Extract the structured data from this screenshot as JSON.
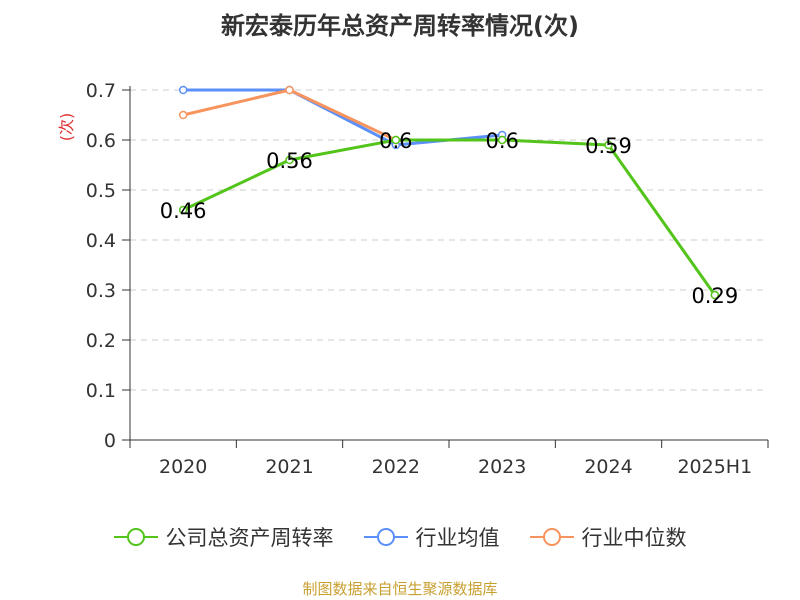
{
  "title": "新宏泰历年总资产周转率情况(次)",
  "footer": "制图数据来自恒生聚源数据库",
  "colors": {
    "series_1": "#52c41a",
    "series_2": "#5b8ff9",
    "series_3": "#f7945e",
    "grid": "#cccccc",
    "axis": "#333333",
    "ylabel": "#e03030",
    "footer": "#c8a030"
  },
  "chart_data": {
    "type": "line",
    "title": "新宏泰历年总资产周转率情况(次)",
    "ylabel": "(次)",
    "xlabel": "",
    "categories": [
      "2020",
      "2021",
      "2022",
      "2023",
      "2024",
      "2025H1"
    ],
    "ylim": [
      0,
      0.7
    ],
    "yticks": [
      "0",
      "0.1",
      "0.2",
      "0.3",
      "0.4",
      "0.5",
      "0.6",
      "0.7"
    ],
    "grid": "horizontal dashed",
    "legend_position": "bottom",
    "series": [
      {
        "name": "公司总资产周转率",
        "values": [
          0.46,
          0.56,
          0.6,
          0.6,
          0.59,
          0.29
        ],
        "labels": [
          "0.46",
          "0.56",
          "0.6",
          "0.6",
          "0.59",
          "0.29"
        ],
        "color": "#52c41a"
      },
      {
        "name": "行业均值",
        "values": [
          0.7,
          0.7,
          0.59,
          0.61,
          null,
          null
        ],
        "color": "#5b8ff9"
      },
      {
        "name": "行业中位数",
        "values": [
          0.65,
          0.7,
          0.6,
          0.6,
          null,
          null
        ],
        "color": "#f7945e"
      }
    ]
  }
}
